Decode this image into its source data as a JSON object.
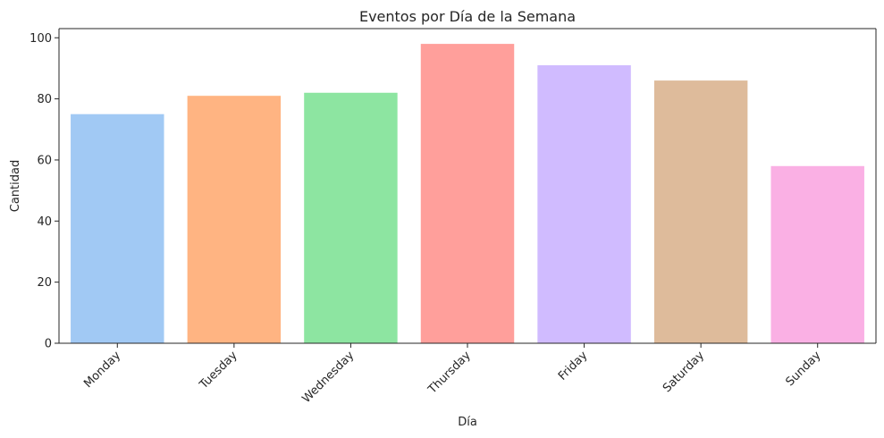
{
  "chart_data": {
    "type": "bar",
    "title": "Eventos por Día de la Semana",
    "xlabel": "Día",
    "ylabel": "Cantidad",
    "categories": [
      "Monday",
      "Tuesday",
      "Wednesday",
      "Thursday",
      "Friday",
      "Saturday",
      "Sunday"
    ],
    "values": [
      75,
      81,
      82,
      98,
      91,
      86,
      58
    ],
    "colors": [
      "#a1c9f4",
      "#ffb482",
      "#8de5a1",
      "#ff9f9b",
      "#d0bbff",
      "#debb9b",
      "#fab0e4"
    ],
    "ylim": [
      0,
      103
    ],
    "yticks": [
      0,
      20,
      40,
      60,
      80,
      100
    ],
    "ytick_labels": [
      "0",
      "20",
      "40",
      "60",
      "80",
      "100"
    ],
    "xtick_rotation": 45,
    "grid": false,
    "legend": "none"
  }
}
